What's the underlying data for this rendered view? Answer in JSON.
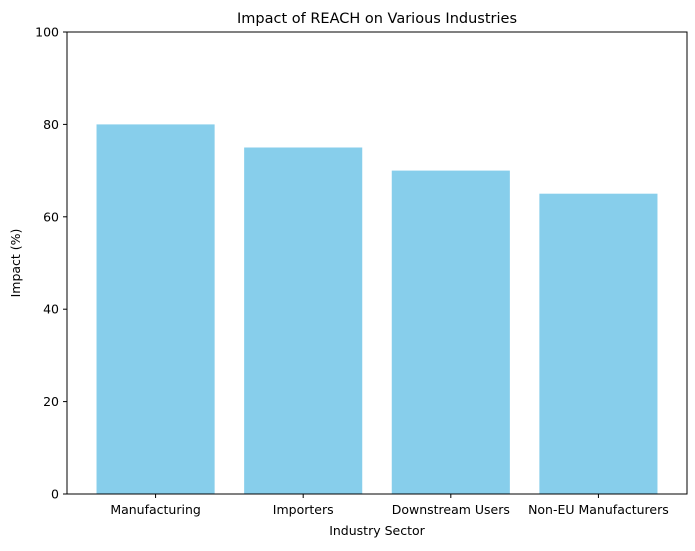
{
  "chart_data": {
    "type": "bar",
    "title": "Impact of REACH on Various Industries",
    "xlabel": "Industry Sector",
    "ylabel": "Impact (%)",
    "categories": [
      "Manufacturing",
      "Importers",
      "Downstream Users",
      "Non-EU Manufacturers"
    ],
    "values": [
      80,
      75,
      70,
      65
    ],
    "ylim": [
      0,
      100
    ],
    "yticks": [
      "0",
      "20",
      "40",
      "60",
      "80",
      "100"
    ],
    "grid": false,
    "bar_color": "#87ceeb"
  }
}
